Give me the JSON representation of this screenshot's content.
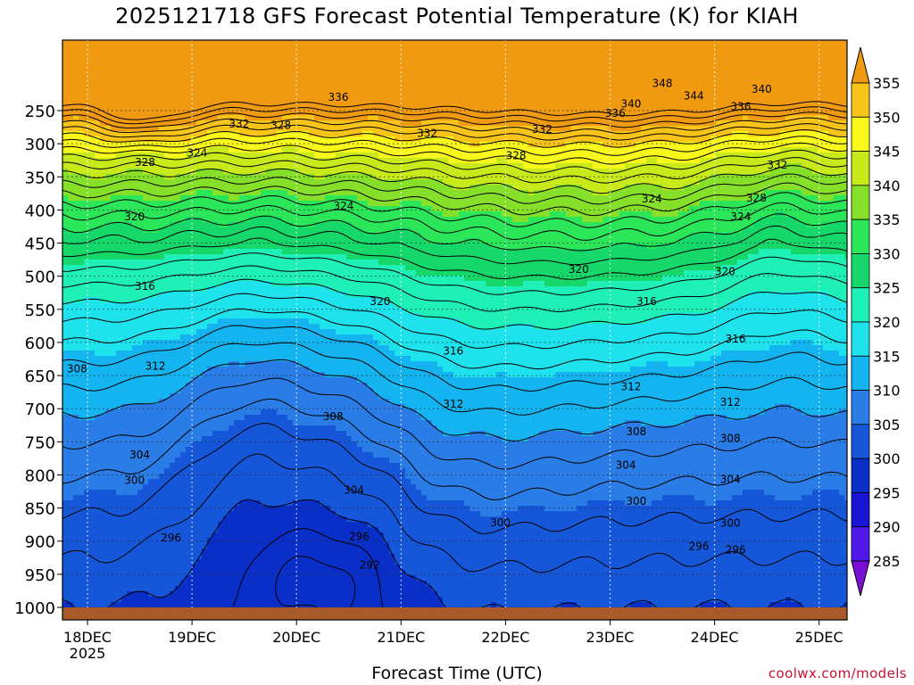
{
  "title": "2025121718 GFS Forecast Potential Temperature (K) for KIAH",
  "credit": "coolwx.com/models",
  "chart_data": {
    "type": "contour",
    "title": "2025121718 GFS Forecast Potential Temperature (K) for KIAH",
    "xlabel": "Forecast Time (UTC)",
    "ylabel": "",
    "x_ticks": [
      "18DEC",
      "19DEC",
      "20DEC",
      "21DEC",
      "22DEC",
      "23DEC",
      "24DEC",
      "25DEC"
    ],
    "x_tick_sublabel": "2025",
    "y_ticks": [
      250,
      300,
      350,
      400,
      450,
      500,
      550,
      600,
      650,
      700,
      750,
      800,
      850,
      900,
      950,
      1000
    ],
    "y_axis": "pressure (hPa), inverted",
    "colorbar": {
      "levels": [
        285,
        290,
        295,
        300,
        305,
        310,
        315,
        320,
        325,
        330,
        335,
        340,
        345,
        350,
        355
      ],
      "colors": [
        "#7a10d6",
        "#4f17e8",
        "#1a14d4",
        "#0a2fc8",
        "#1656d8",
        "#2a7ce6",
        "#14b4f0",
        "#1ee2ec",
        "#1ef0b8",
        "#16d86a",
        "#2ce65a",
        "#86e02a",
        "#c8ea1a",
        "#f8f81a",
        "#f8c41a",
        "#f09a12"
      ],
      "extend": "both"
    },
    "contour_labels": [
      {
        "t": 0.55,
        "p": 328,
        "v": "328"
      },
      {
        "t": 1.45,
        "p": 270,
        "v": "332"
      },
      {
        "t": 1.85,
        "p": 272,
        "v": "328"
      },
      {
        "t": 1.05,
        "p": 314,
        "v": "324"
      },
      {
        "t": 0.45,
        "p": 410,
        "v": "320"
      },
      {
        "t": 0.55,
        "p": 515,
        "v": "316"
      },
      {
        "t": -0.1,
        "p": 640,
        "v": "308"
      },
      {
        "t": 0.65,
        "p": 636,
        "v": "312"
      },
      {
        "t": 0.5,
        "p": 770,
        "v": "304"
      },
      {
        "t": 0.45,
        "p": 808,
        "v": "300"
      },
      {
        "t": 0.8,
        "p": 895,
        "v": "296"
      },
      {
        "t": 2.4,
        "p": 230,
        "v": "336"
      },
      {
        "t": 3.25,
        "p": 284,
        "v": "332"
      },
      {
        "t": 2.45,
        "p": 394,
        "v": "324"
      },
      {
        "t": 2.8,
        "p": 538,
        "v": "320"
      },
      {
        "t": 3.5,
        "p": 613,
        "v": "316"
      },
      {
        "t": 3.5,
        "p": 693,
        "v": "312"
      },
      {
        "t": 2.35,
        "p": 712,
        "v": "308"
      },
      {
        "t": 2.55,
        "p": 823,
        "v": "304"
      },
      {
        "t": 3.95,
        "p": 872,
        "v": "300"
      },
      {
        "t": 2.6,
        "p": 893,
        "v": "296"
      },
      {
        "t": 2.7,
        "p": 936,
        "v": "292"
      },
      {
        "t": 4.1,
        "p": 318,
        "v": "328"
      },
      {
        "t": 4.35,
        "p": 278,
        "v": "332"
      },
      {
        "t": 5.05,
        "p": 254,
        "v": "336"
      },
      {
        "t": 5.2,
        "p": 240,
        "v": "340"
      },
      {
        "t": 5.8,
        "p": 228,
        "v": "344"
      },
      {
        "t": 5.5,
        "p": 209,
        "v": "348"
      },
      {
        "t": 6.45,
        "p": 218,
        "v": "340"
      },
      {
        "t": 6.25,
        "p": 244,
        "v": "336"
      },
      {
        "t": 6.6,
        "p": 332,
        "v": "332"
      },
      {
        "t": 5.4,
        "p": 383,
        "v": "324"
      },
      {
        "t": 6.4,
        "p": 382,
        "v": "328"
      },
      {
        "t": 6.25,
        "p": 410,
        "v": "324"
      },
      {
        "t": 4.7,
        "p": 490,
        "v": "320"
      },
      {
        "t": 6.1,
        "p": 493,
        "v": "320"
      },
      {
        "t": 5.35,
        "p": 538,
        "v": "316"
      },
      {
        "t": 6.2,
        "p": 595,
        "v": "316"
      },
      {
        "t": 5.2,
        "p": 667,
        "v": "312"
      },
      {
        "t": 6.15,
        "p": 690,
        "v": "312"
      },
      {
        "t": 5.25,
        "p": 735,
        "v": "308"
      },
      {
        "t": 6.15,
        "p": 745,
        "v": "308"
      },
      {
        "t": 5.15,
        "p": 785,
        "v": "304"
      },
      {
        "t": 6.15,
        "p": 807,
        "v": "304"
      },
      {
        "t": 5.25,
        "p": 840,
        "v": "300"
      },
      {
        "t": 6.15,
        "p": 873,
        "v": "300"
      },
      {
        "t": 5.85,
        "p": 908,
        "v": "296"
      },
      {
        "t": 6.2,
        "p": 913,
        "v": "296"
      }
    ]
  }
}
